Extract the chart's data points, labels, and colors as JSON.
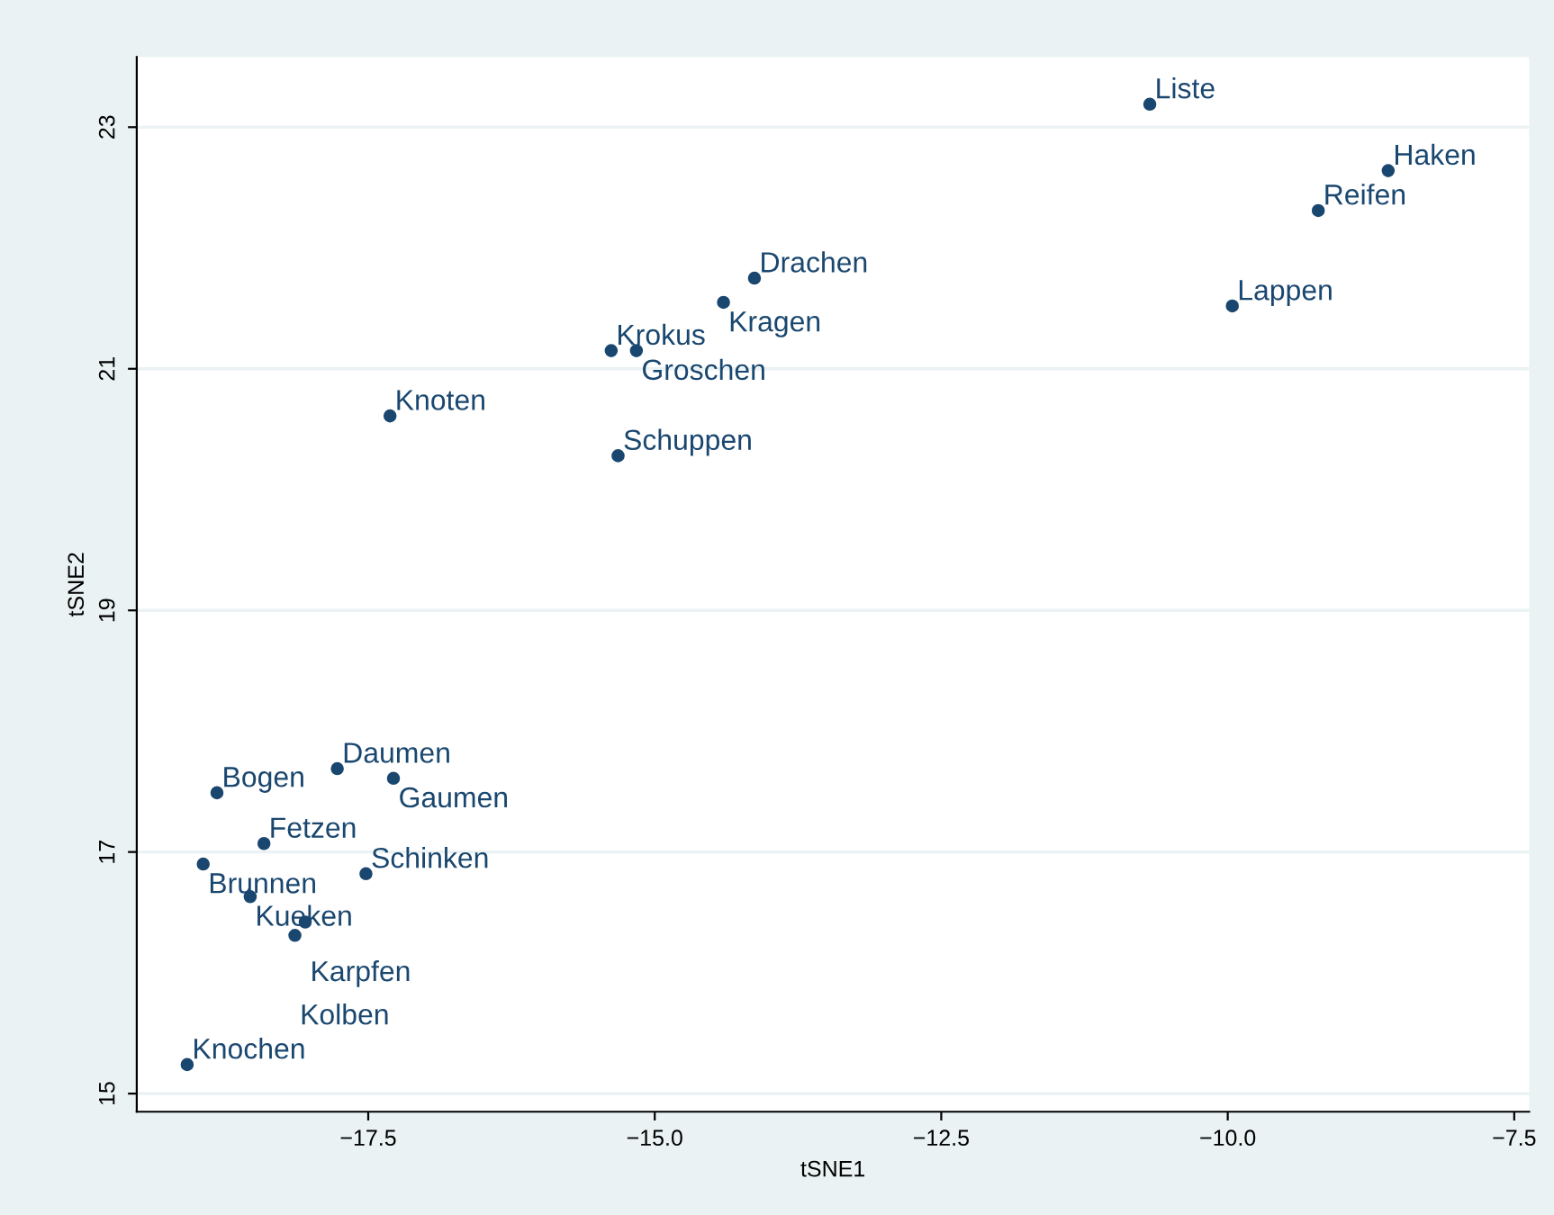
{
  "chart_data": {
    "type": "scatter",
    "xlabel": "tSNE1",
    "ylabel": "tSNE2",
    "x": [
      -10.68,
      -8.6,
      -9.21,
      -9.96,
      -14.13,
      -14.4,
      -15.38,
      -15.16,
      -17.31,
      -15.32,
      -17.77,
      -17.28,
      -18.82,
      -18.41,
      -18.94,
      -17.52,
      -18.53,
      -18.05,
      -18.14,
      -19.08
    ],
    "series": [
      {
        "color": "#1a476f",
        "values": [
          23.19,
          22.64,
          22.31,
          21.52,
          21.75,
          21.55,
          21.15,
          21.15,
          20.61,
          20.28,
          17.69,
          17.61,
          17.49,
          17.07,
          16.9,
          16.82,
          16.63,
          16.42,
          16.31,
          15.24
        ]
      }
    ],
    "annotations": [
      {
        "text": "Liste",
        "x": -10.68,
        "y": 23.19
      },
      {
        "text": "Haken",
        "x": -8.6,
        "y": 22.64
      },
      {
        "text": "Reifen",
        "x": -9.21,
        "y": 22.31
      },
      {
        "text": "Lappen",
        "x": -9.96,
        "y": 21.52
      },
      {
        "text": "Drachen",
        "x": -14.13,
        "y": 21.75
      },
      {
        "text": "Kragen",
        "x": -14.4,
        "y": 21.55
      },
      {
        "text": "Krokus",
        "x": -15.38,
        "y": 21.15
      },
      {
        "text": "Groschen",
        "x": -15.16,
        "y": 21.15
      },
      {
        "text": "Knoten",
        "x": -17.31,
        "y": 20.61
      },
      {
        "text": "Schuppen",
        "x": -15.32,
        "y": 20.28
      },
      {
        "text": "Daumen",
        "x": -17.77,
        "y": 17.69
      },
      {
        "text": "Gaumen",
        "x": -17.28,
        "y": 17.61
      },
      {
        "text": "Bogen",
        "x": -18.82,
        "y": 17.49
      },
      {
        "text": "Fetzen",
        "x": -18.41,
        "y": 17.07
      },
      {
        "text": "Brunnen",
        "x": -18.94,
        "y": 16.9
      },
      {
        "text": "Schinken",
        "x": -17.52,
        "y": 16.82
      },
      {
        "text": "Kueken",
        "x": -18.53,
        "y": 16.63
      },
      {
        "text": "Karpfen",
        "x": -18.05,
        "y": 16.42
      },
      {
        "text": "Kolben",
        "x": -18.14,
        "y": 16.31
      },
      {
        "text": "Knochen",
        "x": -19.08,
        "y": 15.24
      }
    ],
    "xlim": [
      -19.52,
      -7.37
    ],
    "ylim": [
      14.85,
      23.58
    ],
    "xticks": [
      {
        "value": -17.5,
        "label": "−17.5"
      },
      {
        "value": -15,
        "label": "−15.0"
      },
      {
        "value": -12.5,
        "label": "−12.5"
      },
      {
        "value": -10,
        "label": "−10.0"
      },
      {
        "value": -7.5,
        "label": "−7.5"
      }
    ],
    "yticks": [
      15,
      17,
      19,
      21,
      23
    ],
    "grid": "y",
    "marker": "circle",
    "legend": false
  }
}
